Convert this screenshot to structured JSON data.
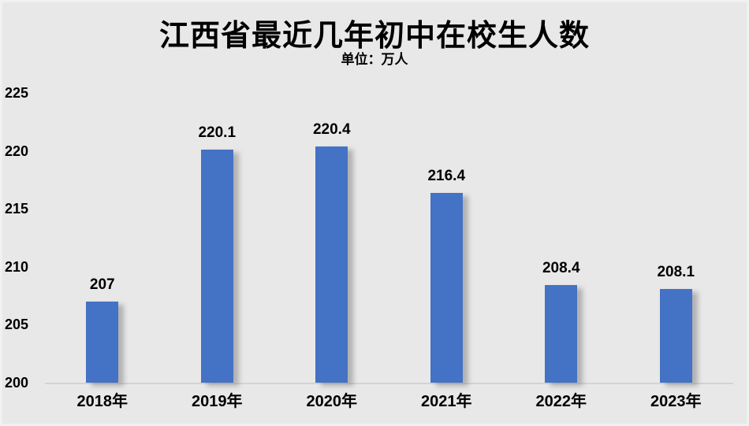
{
  "title": "江西省最近几年初中在校生人数",
  "subtitle": "单位：万人",
  "colors": {
    "bar": "#4472C4",
    "background": "#E9E8E8",
    "axis_line": "#D4D3D3",
    "text": "#000000"
  },
  "chart_data": {
    "type": "bar",
    "title": "江西省最近几年初中在校生人数",
    "subtitle": "单位：万人",
    "unit": "万人",
    "categories": [
      "2018年",
      "2019年",
      "2020年",
      "2021年",
      "2022年",
      "2023年"
    ],
    "values": [
      207,
      220.1,
      220.4,
      216.4,
      208.4,
      208.1
    ],
    "data_labels": [
      "207",
      "220.1",
      "220.4",
      "216.4",
      "208.4",
      "208.1"
    ],
    "xlabel": "",
    "ylabel": "",
    "ylim": [
      200,
      225
    ],
    "yticks": [
      200,
      205,
      210,
      215,
      220,
      225
    ],
    "grid": false,
    "legend": "none",
    "data_labels_shown": true
  }
}
